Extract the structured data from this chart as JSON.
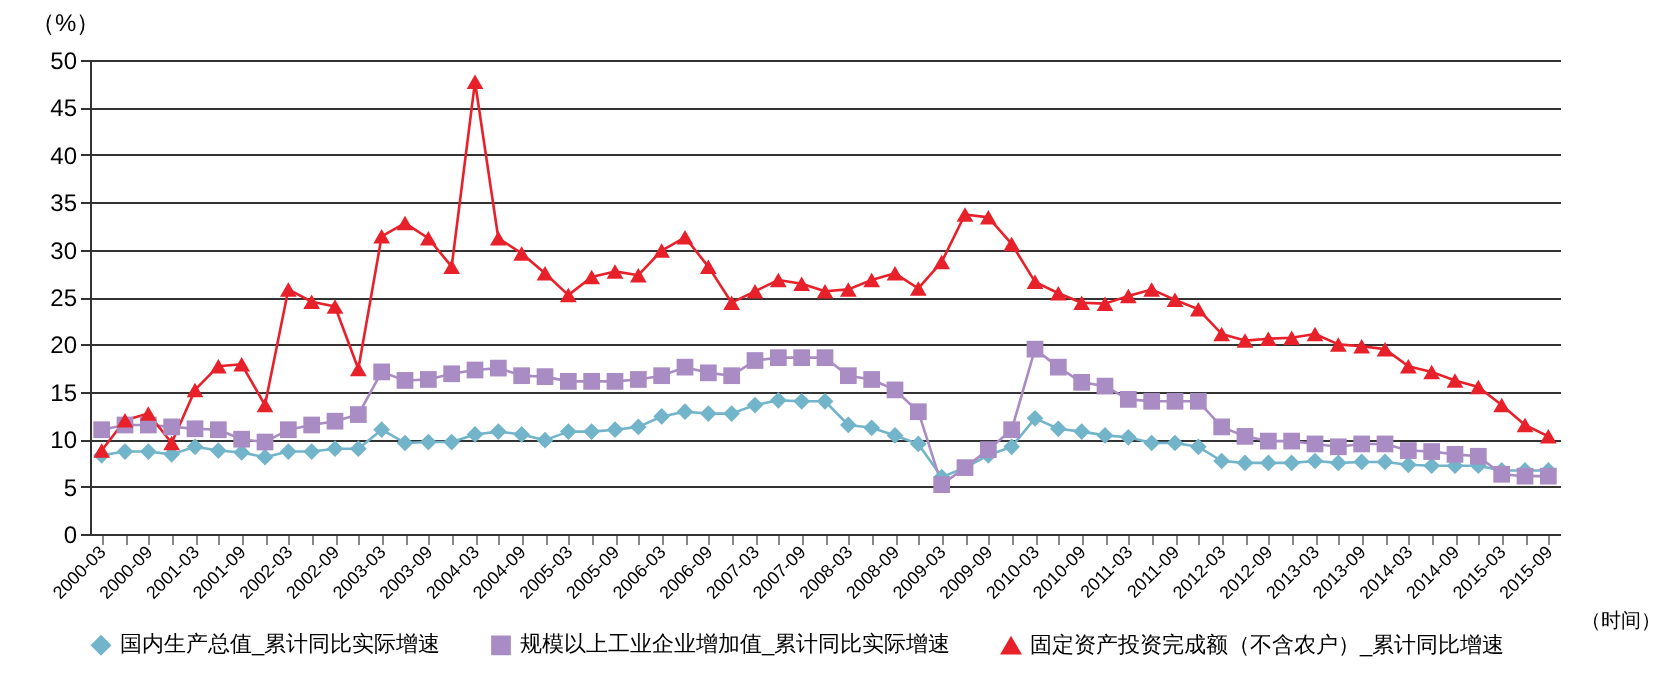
{
  "chart_data": {
    "type": "line",
    "ylabel": "（%）",
    "xlabel": "（时间）",
    "categories": [
      "2000-03",
      null,
      "2000-09",
      null,
      "2001-03",
      null,
      "2001-09",
      null,
      "2002-03",
      null,
      "2002-09",
      null,
      "2003-03",
      null,
      "2003-09",
      null,
      "2004-03",
      null,
      "2004-09",
      null,
      "2005-03",
      null,
      "2005-09",
      null,
      "2006-03",
      null,
      "2006-09",
      null,
      "2007-03",
      null,
      "2007-09",
      null,
      "2008-03",
      null,
      "2008-09",
      null,
      "2009-03",
      null,
      "2009-09",
      null,
      "2010-03",
      null,
      "2010-09",
      null,
      "2011-03",
      null,
      "2011-09",
      null,
      "2012-03",
      null,
      "2012-09",
      null,
      "2013-03",
      null,
      "2013-09",
      null,
      "2014-03",
      null,
      "2014-09",
      null,
      "2015-03",
      null,
      "2015-09"
    ],
    "series": [
      {
        "name": "国内生产总值_累计同比实际增速",
        "color": "#72b4c9",
        "marker": "diamond",
        "values": [
          8.3,
          8.7,
          8.7,
          8.4,
          9.2,
          8.8,
          8.6,
          8.1,
          8.7,
          8.7,
          9.0,
          9.0,
          11.0,
          9.6,
          9.7,
          9.7,
          10.5,
          10.8,
          10.5,
          9.9,
          10.8,
          10.8,
          11.0,
          11.3,
          12.4,
          12.9,
          12.7,
          12.7,
          13.6,
          14.1,
          14.0,
          14.0,
          11.5,
          11.2,
          10.4,
          9.5,
          6.0,
          7.0,
          8.3,
          9.2,
          12.2,
          11.1,
          10.8,
          10.4,
          10.2,
          9.6,
          9.6,
          9.2,
          7.7,
          7.5,
          7.5,
          7.5,
          7.7,
          7.5,
          7.6,
          7.6,
          7.3,
          7.2,
          7.2,
          7.2,
          6.7,
          6.7,
          6.7
        ]
      },
      {
        "name": "规模以上工业企业增加值_累计同比实际增速",
        "color": "#a98cc4",
        "marker": "square",
        "values": [
          11.0,
          11.5,
          11.5,
          11.3,
          11.1,
          11.0,
          10.0,
          9.7,
          11.0,
          11.5,
          11.9,
          12.6,
          17.1,
          16.2,
          16.3,
          16.9,
          17.3,
          17.5,
          16.7,
          16.6,
          16.1,
          16.1,
          16.1,
          16.3,
          16.7,
          17.6,
          17.0,
          16.7,
          18.3,
          18.6,
          18.6,
          18.6,
          16.7,
          16.3,
          15.2,
          12.9,
          5.2,
          7.0,
          8.9,
          11.0,
          19.5,
          17.6,
          16.0,
          15.6,
          14.2,
          14.0,
          14.0,
          14.0,
          11.3,
          10.3,
          9.8,
          9.8,
          9.5,
          9.2,
          9.5,
          9.5,
          8.8,
          8.7,
          8.4,
          8.2,
          6.3,
          6.1,
          6.1
        ]
      },
      {
        "name": "固定资产投资完成额（不含农户）_累计同比增速",
        "color": "#e8202a",
        "marker": "triangle",
        "values": [
          8.8,
          12.0,
          12.7,
          9.6,
          15.2,
          17.7,
          17.9,
          13.6,
          25.8,
          24.5,
          24.0,
          17.4,
          31.4,
          32.8,
          31.2,
          28.2,
          47.7,
          31.2,
          29.6,
          27.5,
          25.2,
          27.1,
          27.7,
          27.3,
          29.9,
          31.3,
          28.2,
          24.4,
          25.6,
          26.8,
          26.4,
          25.6,
          25.8,
          26.8,
          27.5,
          25.9,
          28.7,
          33.7,
          33.4,
          30.6,
          26.6,
          25.4,
          24.4,
          24.3,
          25.1,
          25.8,
          24.7,
          23.7,
          21.1,
          20.4,
          20.6,
          20.7,
          21.1,
          20.0,
          19.8,
          19.5,
          17.7,
          17.1,
          16.2,
          15.5,
          13.6,
          11.5,
          10.3
        ]
      }
    ],
    "ylim": [
      0,
      50
    ],
    "yticks": [
      0,
      5,
      10,
      15,
      20,
      25,
      30,
      35,
      40,
      45,
      50
    ],
    "grid": "y",
    "legend": "bottom",
    "line_style": "solid"
  }
}
